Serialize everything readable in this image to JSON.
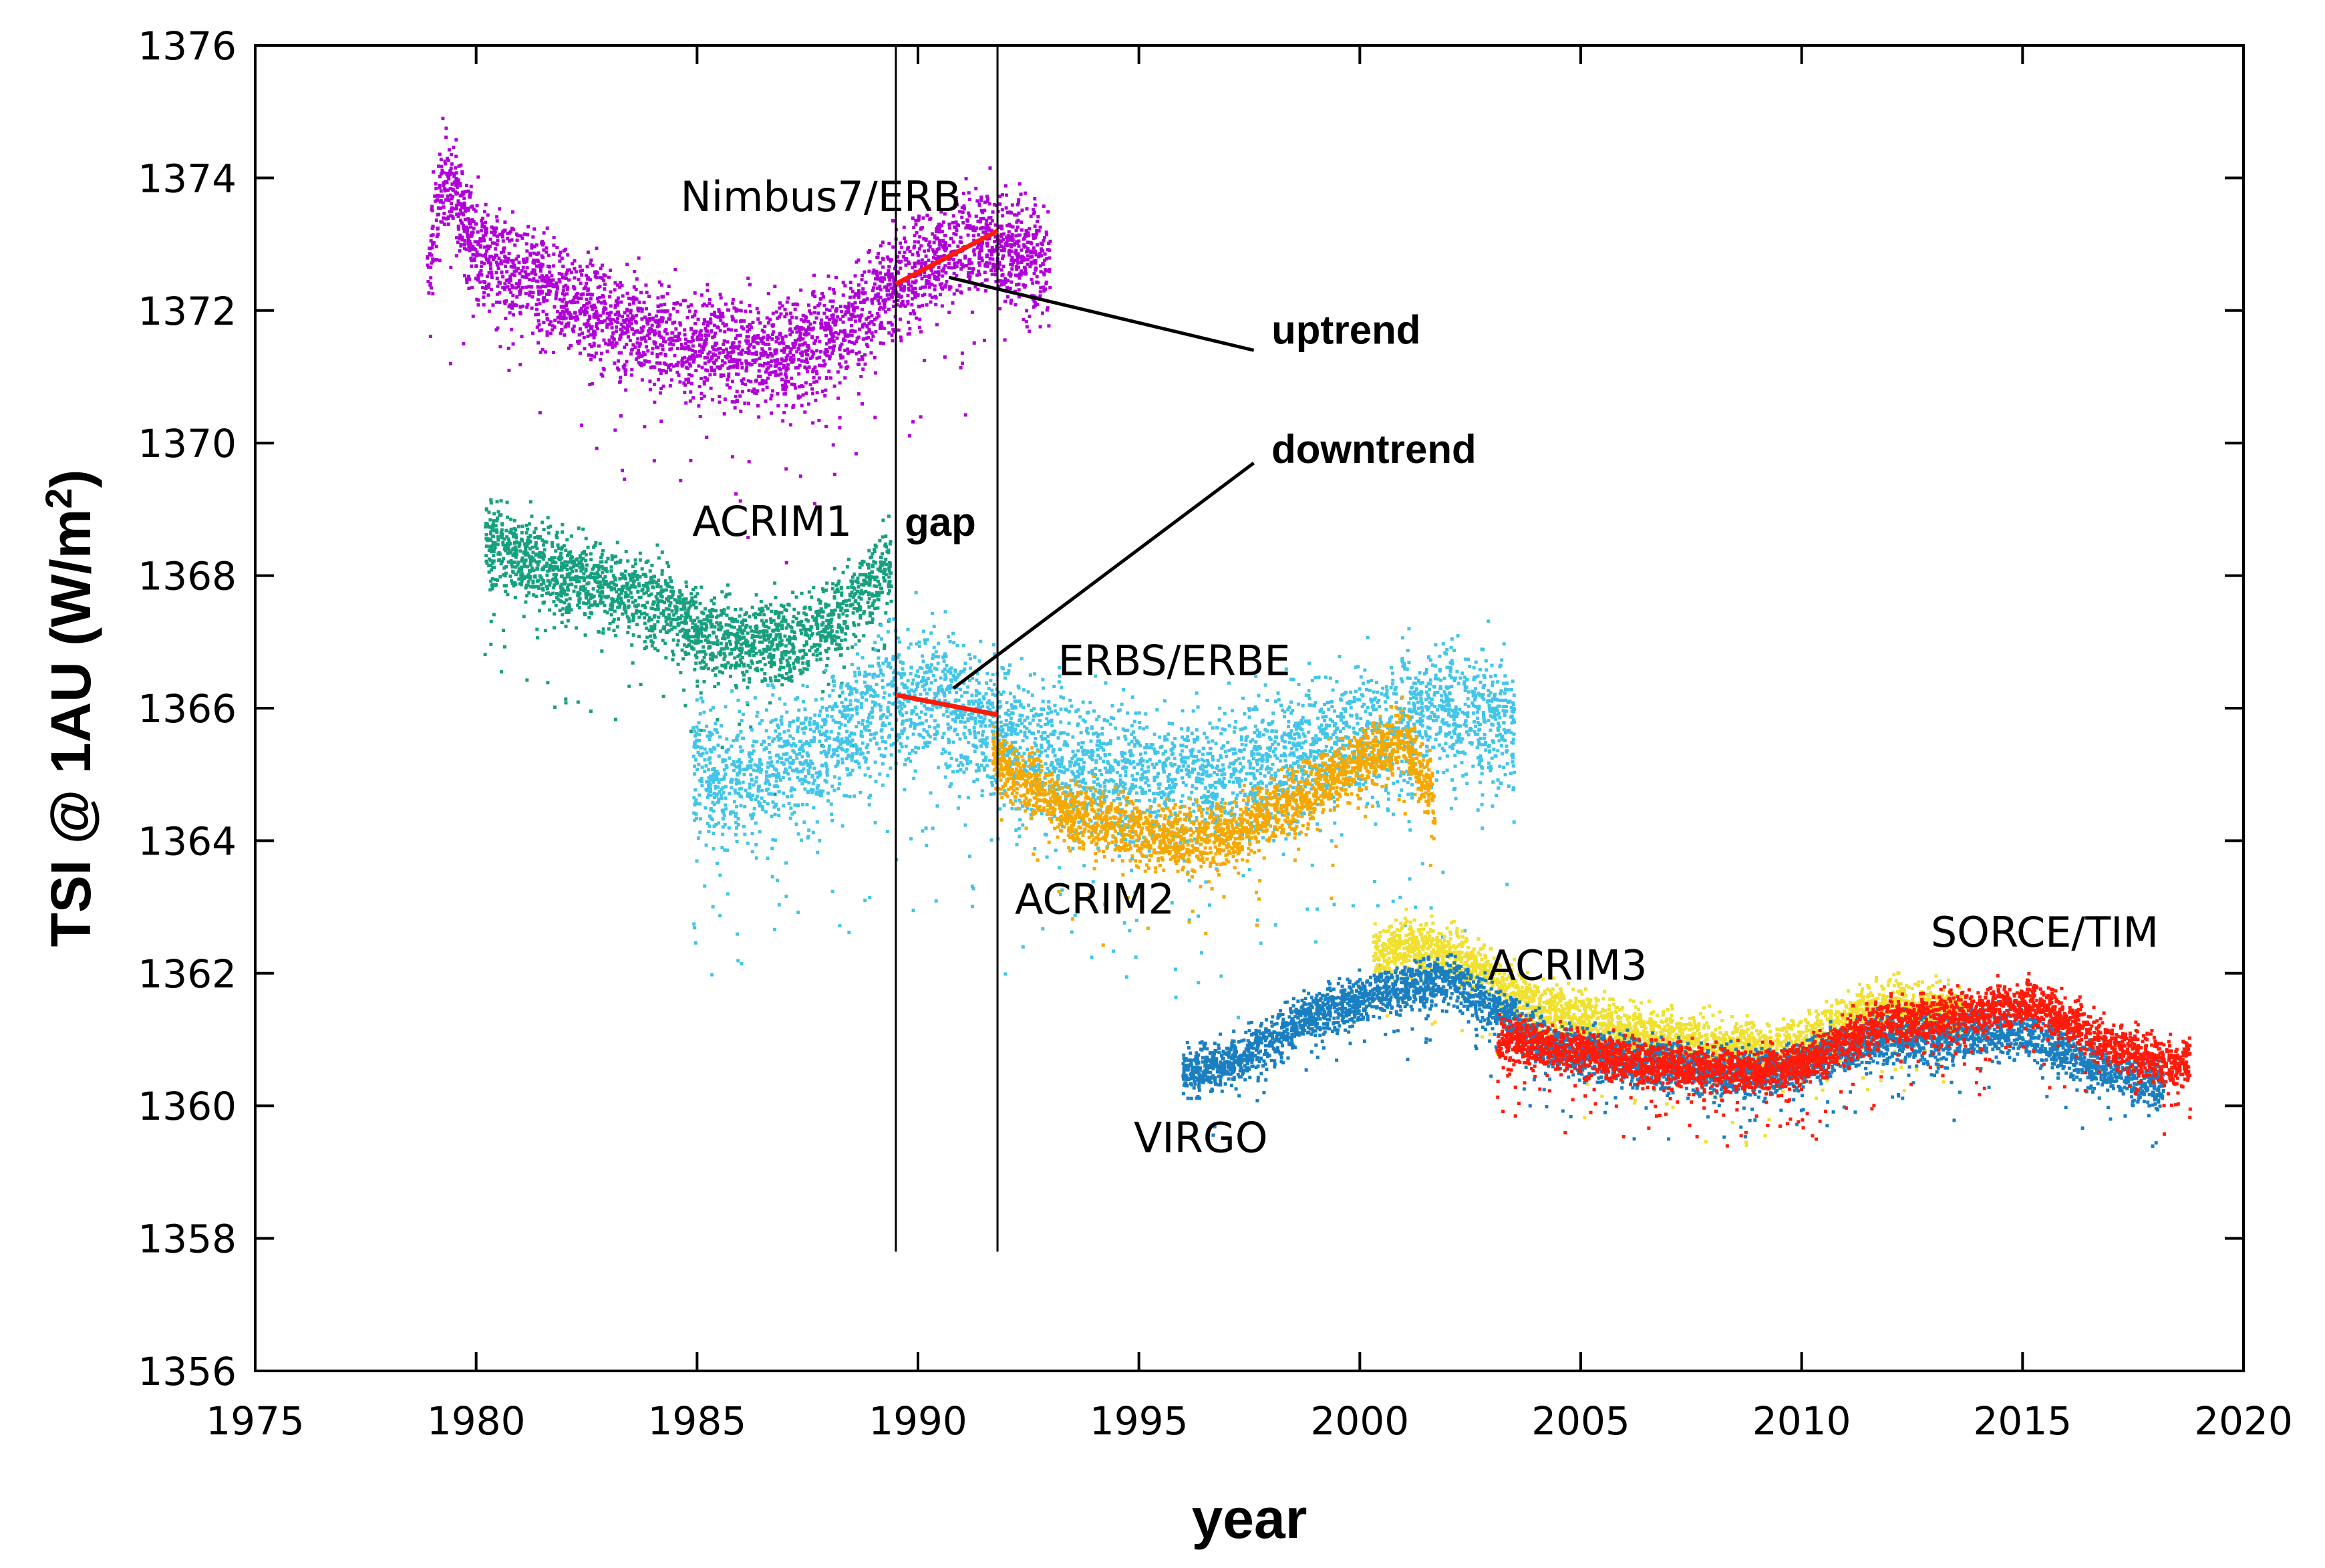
{
  "chart_data": {
    "type": "scatter",
    "title": "",
    "xlabel": "year",
    "ylabel": "TSI @ 1AU (W/m",
    "ylabel_sup": "2",
    "ylabel_close": ")",
    "xlim": [
      1975,
      2020
    ],
    "ylim": [
      1356,
      1376
    ],
    "x_ticks": [
      1975,
      1980,
      1985,
      1990,
      1995,
      2000,
      2005,
      2010,
      2015,
      2020
    ],
    "y_ticks": [
      1356,
      1358,
      1360,
      1362,
      1364,
      1366,
      1368,
      1370,
      1372,
      1374,
      1376
    ],
    "grid": false,
    "series": [
      {
        "name": "Nimbus7/ERB",
        "color": "#b000d8",
        "x": [
          1978.9,
          1979.2,
          1979.5,
          1980.0,
          1981.0,
          1982.0,
          1983.0,
          1984.0,
          1985.0,
          1986.0,
          1987.0,
          1988.0,
          1988.7,
          1989.3,
          1990.0,
          1990.8,
          1991.5,
          1992.2,
          1993.0
        ],
        "y": [
          1372.6,
          1373.9,
          1373.8,
          1373.0,
          1372.5,
          1372.2,
          1371.9,
          1371.6,
          1371.5,
          1371.4,
          1371.3,
          1371.6,
          1371.9,
          1372.3,
          1372.6,
          1372.9,
          1373.1,
          1372.9,
          1372.7
        ],
        "spread": 0.55
      },
      {
        "name": "ACRIM1",
        "color": "#17a080",
        "x": [
          1980.2,
          1981.0,
          1982.0,
          1983.0,
          1983.9,
          1984.4,
          1985.0,
          1986.0,
          1987.0,
          1988.0,
          1988.7,
          1989.4
        ],
        "y": [
          1368.5,
          1368.3,
          1368.0,
          1367.8,
          1367.6,
          1367.5,
          1367.1,
          1367.0,
          1367.0,
          1367.3,
          1367.7,
          1368.2
        ],
        "spread": 0.45
      },
      {
        "name": "ERBS/ERBE",
        "color": "#42c5e8",
        "x": [
          1984.9,
          1986.0,
          1987.0,
          1988.0,
          1989.0,
          1990.0,
          1991.0,
          1992.0,
          1994.0,
          1996.0,
          1998.0,
          2000.0,
          2002.0,
          2003.5
        ],
        "y": [
          1365.0,
          1364.9,
          1365.1,
          1365.5,
          1366.0,
          1366.2,
          1366.0,
          1365.5,
          1365.0,
          1364.9,
          1365.1,
          1365.6,
          1366.0,
          1365.7
        ],
        "spread": 0.75
      },
      {
        "name": "ACRIM2",
        "color": "#f5a800",
        "x": [
          1991.7,
          1992.0,
          1993.0,
          1994.0,
          1995.0,
          1996.0,
          1997.0,
          1998.0,
          1999.0,
          2000.0,
          2001.0,
          2001.7
        ],
        "y": [
          1365.3,
          1365.1,
          1364.6,
          1364.3,
          1364.1,
          1364.0,
          1364.1,
          1364.4,
          1364.8,
          1365.2,
          1365.5,
          1364.6
        ],
        "spread": 0.35
      },
      {
        "name": "ACRIM3",
        "color": "#f0e030",
        "x": [
          2000.3,
          2001.0,
          2002.0,
          2003.0,
          2004.0,
          2005.0,
          2006.0,
          2007.0,
          2008.0,
          2009.0,
          2010.0,
          2011.0,
          2012.0,
          2013.0,
          2013.7
        ],
        "y": [
          1362.2,
          1362.4,
          1362.3,
          1361.9,
          1361.5,
          1361.3,
          1361.1,
          1361.0,
          1360.9,
          1360.8,
          1360.9,
          1361.3,
          1361.5,
          1361.4,
          1361.4
        ],
        "spread": 0.3
      },
      {
        "name": "VIRGO",
        "color": "#1a7fc0",
        "x": [
          1996.0,
          1997.0,
          1998.0,
          1999.0,
          2000.0,
          2001.0,
          2002.0,
          2003.0,
          2004.0,
          2005.0,
          2006.0,
          2007.0,
          2008.0,
          2009.0,
          2010.0,
          2011.0,
          2012.0,
          2013.0,
          2014.0,
          2015.0,
          2016.0,
          2017.0,
          2018.2
        ],
        "y": [
          1360.5,
          1360.6,
          1361.0,
          1361.4,
          1361.6,
          1361.8,
          1361.9,
          1361.5,
          1361.0,
          1360.8,
          1360.7,
          1360.6,
          1360.5,
          1360.5,
          1360.6,
          1360.9,
          1361.0,
          1361.0,
          1361.1,
          1361.1,
          1360.8,
          1360.5,
          1360.3
        ],
        "spread": 0.25
      },
      {
        "name": "SORCE/TIM",
        "color": "#ff1a0a",
        "x": [
          2003.1,
          2004.0,
          2005.0,
          2006.0,
          2007.0,
          2008.0,
          2009.0,
          2010.0,
          2011.0,
          2012.0,
          2013.0,
          2014.0,
          2015.0,
          2016.0,
          2017.0,
          2018.0,
          2018.8
        ],
        "y": [
          1361.0,
          1360.9,
          1360.8,
          1360.7,
          1360.6,
          1360.55,
          1360.5,
          1360.6,
          1361.0,
          1361.3,
          1361.3,
          1361.4,
          1361.6,
          1361.3,
          1360.9,
          1360.7,
          1360.65
        ],
        "spread": 0.25
      }
    ],
    "trend_lines": [
      {
        "name": "uptrend",
        "color": "#ff1a0a",
        "x": [
          1989.5,
          1991.8
        ],
        "y": [
          1372.4,
          1373.2
        ]
      },
      {
        "name": "downtrend",
        "color": "#ff1a0a",
        "x": [
          1989.5,
          1991.8
        ],
        "y": [
          1366.2,
          1365.9
        ]
      }
    ],
    "gap_lines": {
      "x": [
        1989.5,
        1991.8
      ],
      "y_bottom": 1357.8,
      "y_top": 1376
    },
    "annotations": [
      {
        "text": "Nimbus7/ERB",
        "x": 1987.8,
        "y": 1373.5,
        "anchor": "middle",
        "bold": false
      },
      {
        "text": "ACRIM1",
        "x": 1986.7,
        "y": 1368.6,
        "anchor": "middle",
        "bold": false
      },
      {
        "text": "gap",
        "x": 1989.7,
        "y": 1368.6,
        "anchor": "start",
        "bold": true
      },
      {
        "text": "uptrend",
        "x": 1998.0,
        "y": 1371.5,
        "anchor": "start",
        "bold": true
      },
      {
        "text": "downtrend",
        "x": 1998.0,
        "y": 1369.7,
        "anchor": "start",
        "bold": true
      },
      {
        "text": "ERBS/ERBE",
        "x": 1995.8,
        "y": 1366.5,
        "anchor": "middle",
        "bold": false
      },
      {
        "text": "ACRIM2",
        "x": 1994.0,
        "y": 1362.9,
        "anchor": "middle",
        "bold": false
      },
      {
        "text": "ACRIM3",
        "x": 2004.7,
        "y": 1361.9,
        "anchor": "middle",
        "bold": false
      },
      {
        "text": "SORCE/TIM",
        "x": 2015.5,
        "y": 1362.4,
        "anchor": "middle",
        "bold": false
      },
      {
        "text": "VIRGO",
        "x": 1996.4,
        "y": 1359.3,
        "anchor": "middle",
        "bold": false
      }
    ],
    "pointers": [
      {
        "name": "uptrend-pointer",
        "from": [
          1997.6,
          1371.4
        ],
        "to": [
          1990.7,
          1372.5
        ]
      },
      {
        "name": "downtrend-pointer",
        "from": [
          1997.6,
          1369.7
        ],
        "to": [
          1990.8,
          1366.3
        ]
      }
    ]
  }
}
